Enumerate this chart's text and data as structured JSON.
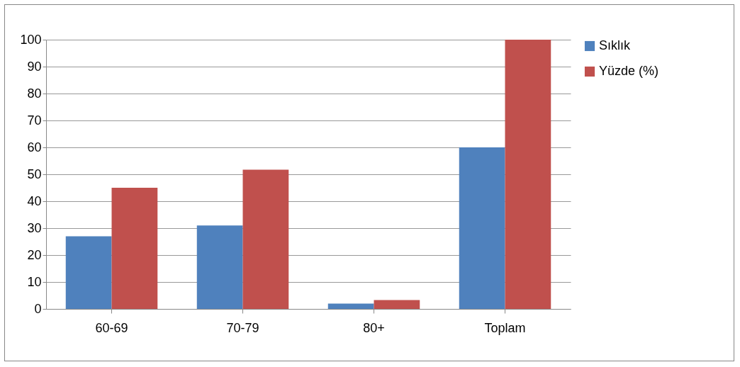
{
  "chart_data": {
    "type": "bar",
    "categories": [
      "60-69",
      "70-79",
      "80+",
      "Toplam"
    ],
    "series": [
      {
        "name": "Sıklık",
        "color": "#4f81bd",
        "values": [
          27,
          31,
          2,
          60
        ]
      },
      {
        "name": "Yüzde (%)",
        "color": "#c0504d",
        "values": [
          45,
          51.7,
          3.3,
          100
        ]
      }
    ],
    "ylim": [
      0,
      100
    ],
    "yticks": [
      0,
      10,
      20,
      30,
      40,
      50,
      60,
      70,
      80,
      90,
      100
    ],
    "grid": "y",
    "legend": "right"
  }
}
